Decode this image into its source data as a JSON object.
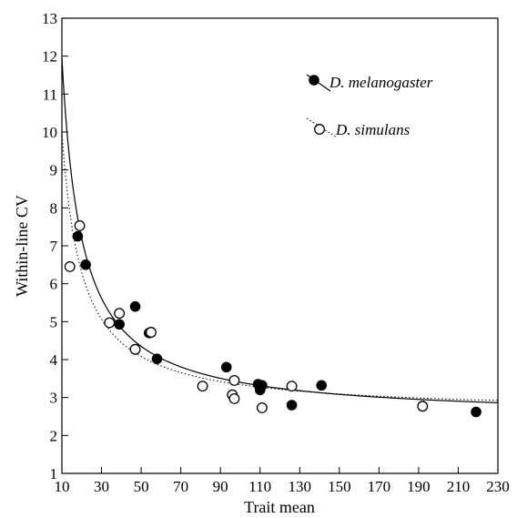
{
  "chart_data": {
    "type": "scatter",
    "title": "",
    "xlabel": "Trait mean",
    "ylabel": "Within-line CV",
    "xlim": [
      10,
      230
    ],
    "ylim": [
      1,
      13
    ],
    "xticks": [
      10,
      30,
      50,
      70,
      90,
      110,
      130,
      150,
      170,
      190,
      210,
      230
    ],
    "yticks": [
      1,
      2,
      3,
      4,
      5,
      6,
      7,
      8,
      9,
      10,
      11,
      12,
      13
    ],
    "grid": false,
    "legend_position": "top-right",
    "series": [
      {
        "name": "D. melanogaster",
        "marker": "filled-circle",
        "line": "solid",
        "fit": {
          "a": 2.45,
          "b": 95
        },
        "points": [
          [
            18,
            7.25
          ],
          [
            22,
            6.5
          ],
          [
            39,
            4.93
          ],
          [
            47,
            5.4
          ],
          [
            54,
            4.7
          ],
          [
            58,
            4.02
          ],
          [
            93,
            3.8
          ],
          [
            109,
            3.35
          ],
          [
            110,
            3.2
          ],
          [
            111,
            3.32
          ],
          [
            126,
            2.8
          ],
          [
            141,
            3.32
          ],
          [
            219,
            2.62
          ]
        ]
      },
      {
        "name": "D. simulans",
        "marker": "open-circle",
        "line": "dotted",
        "fit": {
          "a": 2.6,
          "b": 74
        },
        "points": [
          [
            14,
            6.45
          ],
          [
            19,
            7.53
          ],
          [
            34,
            4.97
          ],
          [
            39,
            5.22
          ],
          [
            47,
            4.27
          ],
          [
            55,
            4.72
          ],
          [
            81,
            3.3
          ],
          [
            96,
            3.07
          ],
          [
            97,
            2.97
          ],
          [
            97,
            3.45
          ],
          [
            111,
            2.73
          ],
          [
            126,
            3.3
          ],
          [
            192,
            2.77
          ]
        ]
      }
    ]
  }
}
